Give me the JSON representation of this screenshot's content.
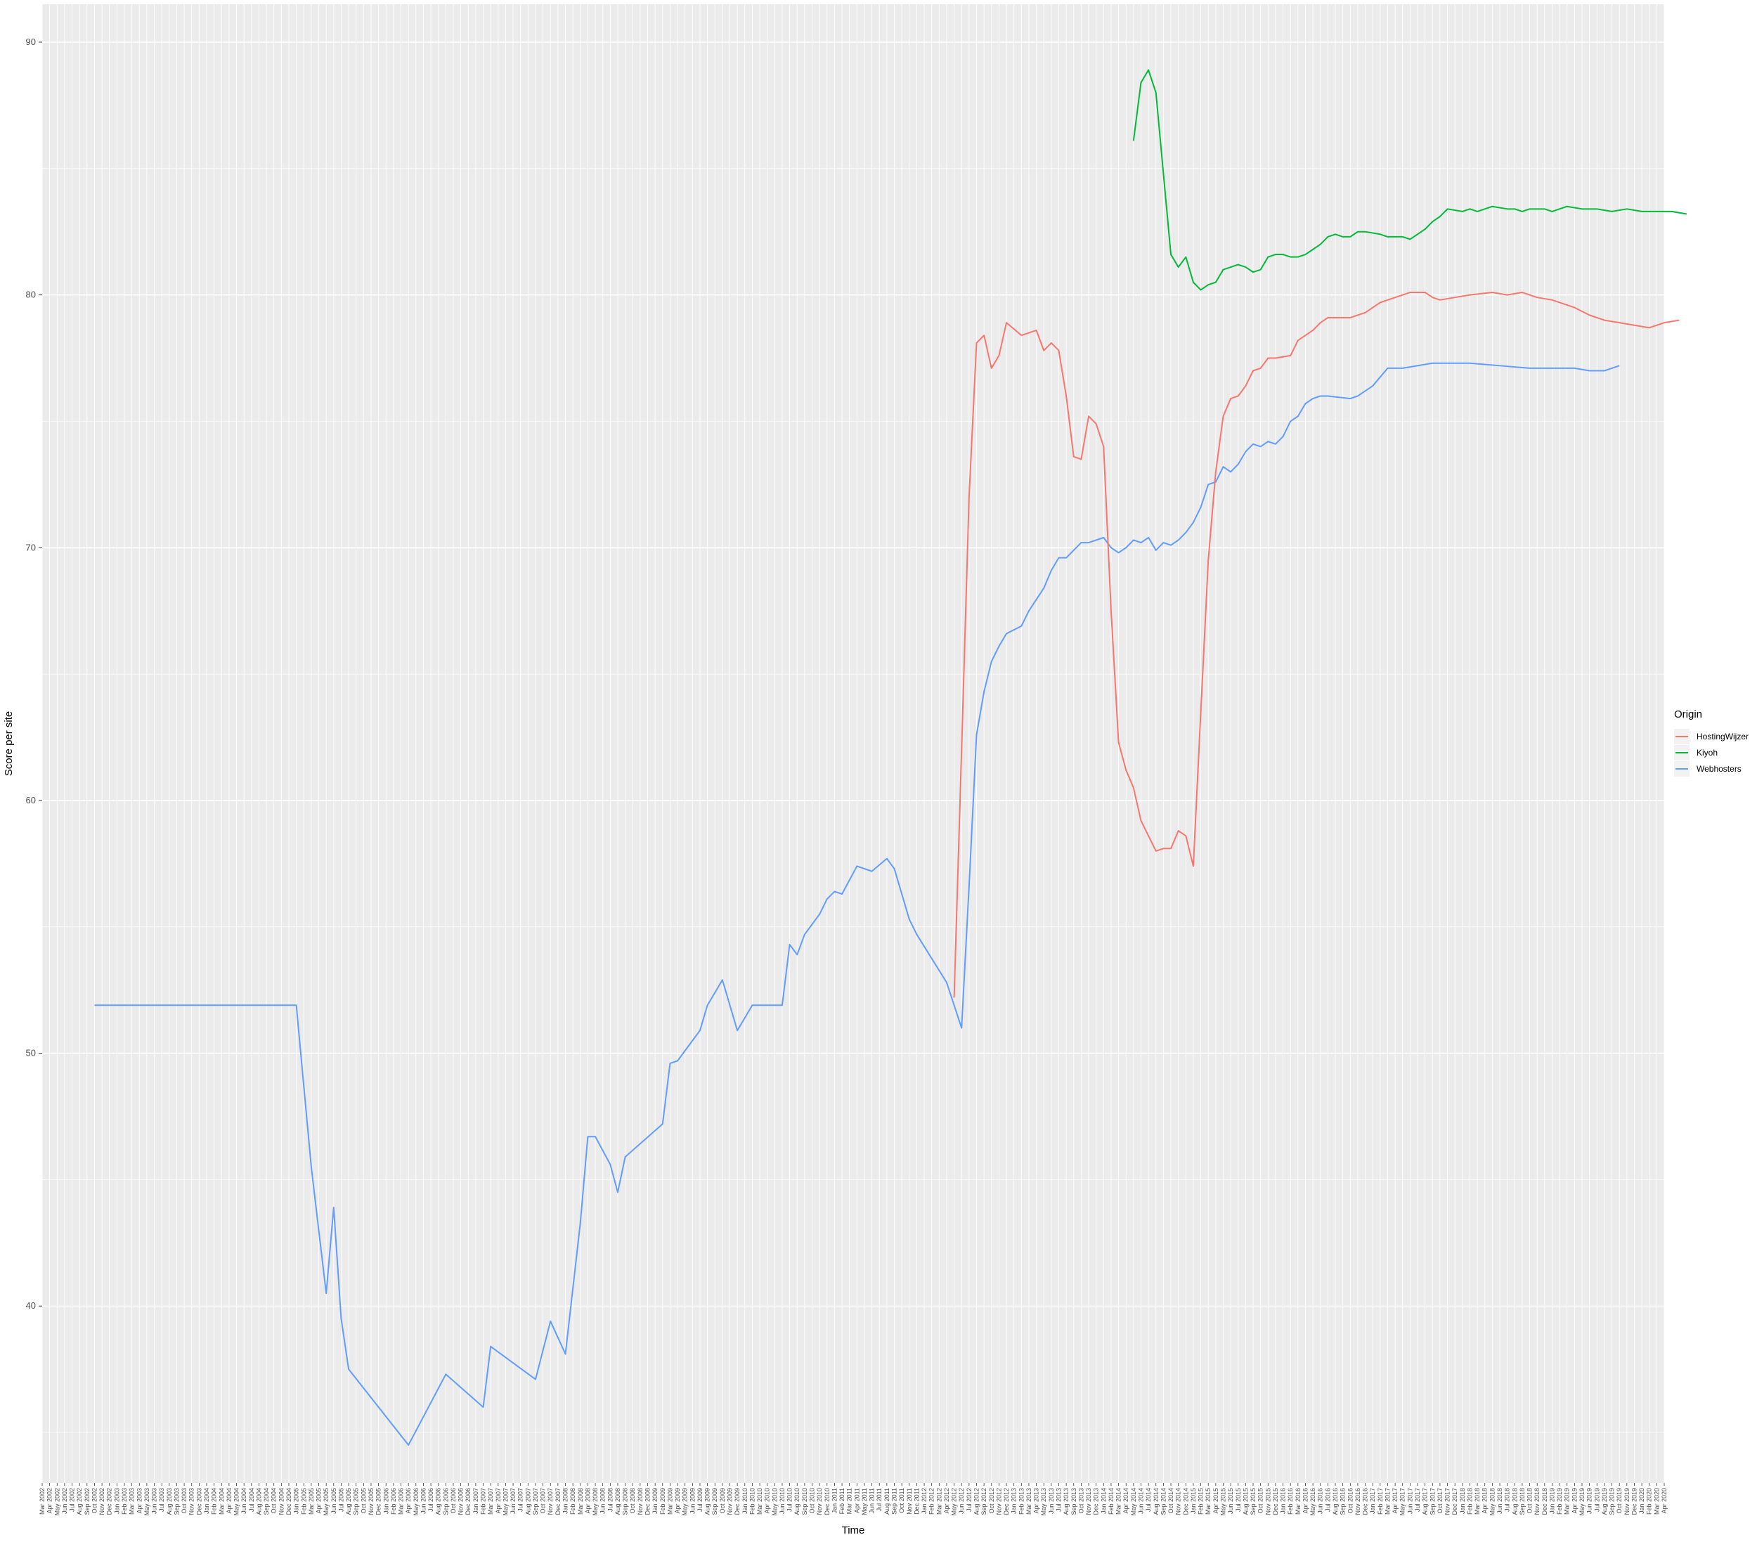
{
  "chart_data": {
    "type": "line",
    "title": "",
    "xlabel": "Time",
    "ylabel": "Score per site",
    "x_type": "month",
    "xlim": [
      "2002-03",
      "2020-04"
    ],
    "ylim": [
      33.0,
      91.5
    ],
    "y_ticks": [
      40,
      50,
      60,
      70,
      80,
      90
    ],
    "grid": true,
    "legend": {
      "title": "Origin",
      "position": "right",
      "entries": [
        "HostingWijzer",
        "Kiyoh",
        "Webhosters"
      ]
    },
    "colors": {
      "HostingWijzer": "#F8766D",
      "Kiyoh": "#00BA38",
      "Webhosters": "#619CFF",
      "panel": "#EBEBEB",
      "grid": "#FFFFFF",
      "tick_text": "#4D4D4D"
    },
    "series": [
      {
        "name": "Webhosters",
        "points": [
          [
            "2002-10",
            51.9
          ],
          [
            "2004-01",
            51.9
          ],
          [
            "2005-01",
            51.9
          ],
          [
            "2005-03",
            45.5
          ],
          [
            "2005-05",
            40.5
          ],
          [
            "2005-06",
            43.9
          ],
          [
            "2005-07",
            39.5
          ],
          [
            "2005-08",
            37.5
          ],
          [
            "2005-12",
            36.0
          ],
          [
            "2006-04",
            34.5
          ],
          [
            "2006-09",
            37.3
          ],
          [
            "2007-02",
            36.0
          ],
          [
            "2007-03",
            38.4
          ],
          [
            "2007-09",
            37.1
          ],
          [
            "2007-11",
            39.4
          ],
          [
            "2008-01",
            38.1
          ],
          [
            "2008-03",
            43.3
          ],
          [
            "2008-04",
            46.7
          ],
          [
            "2008-05",
            46.7
          ],
          [
            "2008-07",
            45.6
          ],
          [
            "2008-08",
            44.5
          ],
          [
            "2008-09",
            45.9
          ],
          [
            "2009-02",
            47.2
          ],
          [
            "2009-03",
            49.6
          ],
          [
            "2009-04",
            49.7
          ],
          [
            "2009-07",
            50.9
          ],
          [
            "2009-08",
            51.9
          ],
          [
            "2009-10",
            52.9
          ],
          [
            "2009-12",
            50.9
          ],
          [
            "2010-02",
            51.9
          ],
          [
            "2010-06",
            51.9
          ],
          [
            "2010-07",
            54.3
          ],
          [
            "2010-08",
            53.9
          ],
          [
            "2010-09",
            54.7
          ],
          [
            "2010-11",
            55.5
          ],
          [
            "2010-12",
            56.1
          ],
          [
            "2011-01",
            56.4
          ],
          [
            "2011-02",
            56.3
          ],
          [
            "2011-04",
            57.4
          ],
          [
            "2011-06",
            57.2
          ],
          [
            "2011-08",
            57.7
          ],
          [
            "2011-09",
            57.3
          ],
          [
            "2011-11",
            55.3
          ],
          [
            "2011-12",
            54.7
          ],
          [
            "2012-04",
            52.8
          ],
          [
            "2012-06",
            51.0
          ],
          [
            "2012-07",
            56.6
          ],
          [
            "2012-08",
            62.6
          ],
          [
            "2012-09",
            64.3
          ],
          [
            "2012-10",
            65.5
          ],
          [
            "2012-11",
            66.1
          ],
          [
            "2012-12",
            66.6
          ],
          [
            "2013-02",
            66.9
          ],
          [
            "2013-03",
            67.5
          ],
          [
            "2013-05",
            68.4
          ],
          [
            "2013-06",
            69.1
          ],
          [
            "2013-07",
            69.6
          ],
          [
            "2013-08",
            69.6
          ],
          [
            "2013-10",
            70.2
          ],
          [
            "2013-11",
            70.2
          ],
          [
            "2014-01",
            70.4
          ],
          [
            "2014-02",
            70.0
          ],
          [
            "2014-03",
            69.8
          ],
          [
            "2014-04",
            70.0
          ],
          [
            "2014-05",
            70.3
          ],
          [
            "2014-06",
            70.2
          ],
          [
            "2014-07",
            70.4
          ],
          [
            "2014-08",
            69.9
          ],
          [
            "2014-09",
            70.2
          ],
          [
            "2014-10",
            70.1
          ],
          [
            "2014-11",
            70.3
          ],
          [
            "2014-12",
            70.6
          ],
          [
            "2015-01",
            71.0
          ],
          [
            "2015-02",
            71.6
          ],
          [
            "2015-03",
            72.5
          ],
          [
            "2015-04",
            72.6
          ],
          [
            "2015-05",
            73.2
          ],
          [
            "2015-06",
            73.0
          ],
          [
            "2015-07",
            73.3
          ],
          [
            "2015-08",
            73.8
          ],
          [
            "2015-09",
            74.1
          ],
          [
            "2015-10",
            74.0
          ],
          [
            "2015-11",
            74.2
          ],
          [
            "2015-12",
            74.1
          ],
          [
            "2016-01",
            74.4
          ],
          [
            "2016-02",
            75.0
          ],
          [
            "2016-03",
            75.2
          ],
          [
            "2016-04",
            75.7
          ],
          [
            "2016-05",
            75.9
          ],
          [
            "2016-06",
            76.0
          ],
          [
            "2016-07",
            76.0
          ],
          [
            "2016-10",
            75.9
          ],
          [
            "2016-11",
            76.0
          ],
          [
            "2017-01",
            76.4
          ],
          [
            "2017-03",
            77.1
          ],
          [
            "2017-05",
            77.1
          ],
          [
            "2017-09",
            77.3
          ],
          [
            "2018-02",
            77.3
          ],
          [
            "2018-06",
            77.2
          ],
          [
            "2018-10",
            77.1
          ],
          [
            "2019-02",
            77.1
          ],
          [
            "2019-04",
            77.1
          ],
          [
            "2019-06",
            77.0
          ],
          [
            "2019-08",
            77.0
          ],
          [
            "2019-10",
            77.2
          ]
        ]
      },
      {
        "name": "HostingWijzer",
        "points": [
          [
            "2012-05",
            52.2
          ],
          [
            "2012-06",
            62.0
          ],
          [
            "2012-07",
            72.0
          ],
          [
            "2012-08",
            78.1
          ],
          [
            "2012-09",
            78.4
          ],
          [
            "2012-10",
            77.1
          ],
          [
            "2012-11",
            77.6
          ],
          [
            "2012-12",
            78.9
          ],
          [
            "2013-02",
            78.4
          ],
          [
            "2013-04",
            78.6
          ],
          [
            "2013-05",
            77.8
          ],
          [
            "2013-06",
            78.1
          ],
          [
            "2013-07",
            77.8
          ],
          [
            "2013-08",
            76.0
          ],
          [
            "2013-09",
            73.6
          ],
          [
            "2013-10",
            73.5
          ],
          [
            "2013-11",
            75.2
          ],
          [
            "2013-12",
            74.9
          ],
          [
            "2014-01",
            74.0
          ],
          [
            "2014-02",
            67.5
          ],
          [
            "2014-03",
            62.3
          ],
          [
            "2014-04",
            61.2
          ],
          [
            "2014-05",
            60.5
          ],
          [
            "2014-06",
            59.2
          ],
          [
            "2014-07",
            58.6
          ],
          [
            "2014-08",
            58.0
          ],
          [
            "2014-09",
            58.1
          ],
          [
            "2014-10",
            58.1
          ],
          [
            "2014-11",
            58.8
          ],
          [
            "2014-12",
            58.6
          ],
          [
            "2015-01",
            57.4
          ],
          [
            "2015-02",
            63.5
          ],
          [
            "2015-03",
            69.5
          ],
          [
            "2015-04",
            73.0
          ],
          [
            "2015-05",
            75.2
          ],
          [
            "2015-06",
            75.9
          ],
          [
            "2015-07",
            76.0
          ],
          [
            "2015-08",
            76.4
          ],
          [
            "2015-09",
            77.0
          ],
          [
            "2015-10",
            77.1
          ],
          [
            "2015-11",
            77.5
          ],
          [
            "2015-12",
            77.5
          ],
          [
            "2016-02",
            77.6
          ],
          [
            "2016-03",
            78.2
          ],
          [
            "2016-04",
            78.4
          ],
          [
            "2016-05",
            78.6
          ],
          [
            "2016-06",
            78.9
          ],
          [
            "2016-07",
            79.1
          ],
          [
            "2016-08",
            79.1
          ],
          [
            "2016-10",
            79.1
          ],
          [
            "2016-12",
            79.3
          ],
          [
            "2017-02",
            79.7
          ],
          [
            "2017-04",
            79.9
          ],
          [
            "2017-06",
            80.1
          ],
          [
            "2017-08",
            80.1
          ],
          [
            "2017-09",
            79.9
          ],
          [
            "2017-10",
            79.8
          ],
          [
            "2017-12",
            79.9
          ],
          [
            "2018-02",
            80.0
          ],
          [
            "2018-05",
            80.1
          ],
          [
            "2018-07",
            80.0
          ],
          [
            "2018-09",
            80.1
          ],
          [
            "2018-11",
            79.9
          ],
          [
            "2019-01",
            79.8
          ],
          [
            "2019-04",
            79.5
          ],
          [
            "2019-06",
            79.2
          ],
          [
            "2019-08",
            79.0
          ],
          [
            "2019-10",
            78.9
          ],
          [
            "2019-12",
            78.8
          ],
          [
            "2020-02",
            78.7
          ],
          [
            "2020-04",
            78.9
          ],
          [
            "2020-06",
            79.0
          ]
        ]
      },
      {
        "name": "Kiyoh",
        "points": [
          [
            "2014-05",
            86.1
          ],
          [
            "2014-06",
            88.4
          ],
          [
            "2014-07",
            88.9
          ],
          [
            "2014-08",
            88.0
          ],
          [
            "2014-09",
            84.8
          ],
          [
            "2014-10",
            81.6
          ],
          [
            "2014-11",
            81.1
          ],
          [
            "2014-12",
            81.5
          ],
          [
            "2015-01",
            80.5
          ],
          [
            "2015-02",
            80.2
          ],
          [
            "2015-03",
            80.4
          ],
          [
            "2015-04",
            80.5
          ],
          [
            "2015-05",
            81.0
          ],
          [
            "2015-06",
            81.1
          ],
          [
            "2015-07",
            81.2
          ],
          [
            "2015-08",
            81.1
          ],
          [
            "2015-09",
            80.9
          ],
          [
            "2015-10",
            81.0
          ],
          [
            "2015-11",
            81.5
          ],
          [
            "2015-12",
            81.6
          ],
          [
            "2016-01",
            81.6
          ],
          [
            "2016-02",
            81.5
          ],
          [
            "2016-03",
            81.5
          ],
          [
            "2016-04",
            81.6
          ],
          [
            "2016-05",
            81.8
          ],
          [
            "2016-06",
            82.0
          ],
          [
            "2016-07",
            82.3
          ],
          [
            "2016-08",
            82.4
          ],
          [
            "2016-09",
            82.3
          ],
          [
            "2016-10",
            82.3
          ],
          [
            "2016-11",
            82.5
          ],
          [
            "2016-12",
            82.5
          ],
          [
            "2017-02",
            82.4
          ],
          [
            "2017-03",
            82.3
          ],
          [
            "2017-05",
            82.3
          ],
          [
            "2017-06",
            82.2
          ],
          [
            "2017-07",
            82.4
          ],
          [
            "2017-08",
            82.6
          ],
          [
            "2017-09",
            82.9
          ],
          [
            "2017-10",
            83.1
          ],
          [
            "2017-11",
            83.4
          ],
          [
            "2018-01",
            83.3
          ],
          [
            "2018-02",
            83.4
          ],
          [
            "2018-03",
            83.3
          ],
          [
            "2018-04",
            83.4
          ],
          [
            "2018-05",
            83.5
          ],
          [
            "2018-07",
            83.4
          ],
          [
            "2018-08",
            83.4
          ],
          [
            "2018-09",
            83.3
          ],
          [
            "2018-10",
            83.4
          ],
          [
            "2018-12",
            83.4
          ],
          [
            "2019-01",
            83.3
          ],
          [
            "2019-03",
            83.5
          ],
          [
            "2019-05",
            83.4
          ],
          [
            "2019-07",
            83.4
          ],
          [
            "2019-09",
            83.3
          ],
          [
            "2019-11",
            83.4
          ],
          [
            "2020-01",
            83.3
          ],
          [
            "2020-03",
            83.3
          ],
          [
            "2020-05",
            83.3
          ],
          [
            "2020-07",
            83.2
          ]
        ]
      }
    ]
  }
}
